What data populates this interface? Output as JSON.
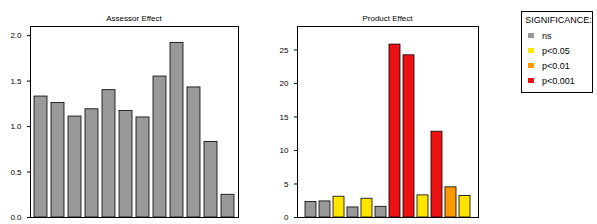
{
  "chart_data": [
    {
      "type": "bar",
      "title": "Assessor Effect",
      "categories": [
        null,
        null,
        null,
        null,
        null,
        null,
        null,
        null,
        null,
        null,
        null,
        null
      ],
      "values": [
        1.33,
        1.26,
        1.11,
        1.19,
        1.4,
        1.17,
        1.1,
        1.55,
        1.92,
        1.43,
        0.83,
        0.25
      ],
      "color": "#999999",
      "ylim": [
        0,
        2.1
      ],
      "yticks": [
        {
          "value": 0,
          "label": "0.0"
        },
        {
          "value": 0.5,
          "label": "0.5"
        },
        {
          "value": 1,
          "label": "1.0"
        },
        {
          "value": 1.5,
          "label": "1.5"
        },
        {
          "value": 2,
          "label": "2.0"
        }
      ],
      "tick_labels": "y"
    },
    {
      "type": "bar",
      "title": "Product Effect",
      "categories": [
        null,
        null,
        null,
        null,
        null,
        null,
        null,
        null,
        null,
        null,
        null,
        null
      ],
      "values": [
        2.3,
        2.4,
        3.1,
        1.5,
        2.8,
        1.6,
        25.8,
        24.2,
        3.3,
        12.8,
        4.5,
        3.2
      ],
      "colors": [
        "#999999",
        "#999999",
        "#ffe400",
        "#999999",
        "#ffe400",
        "#999999",
        "#ee1111",
        "#ee1111",
        "#ffe400",
        "#ee1111",
        "#ff9900",
        "#ffe400"
      ],
      "ylim": [
        0,
        28.5
      ],
      "yticks": [
        0,
        5,
        10,
        15,
        20,
        25
      ],
      "tick_labels": "y"
    }
  ],
  "legend_box": {
    "title": "SIGNIFICANCE:",
    "entries": [
      {
        "name": "ns",
        "color": "#999999"
      },
      {
        "name": "p<0.05",
        "color": "#ffe400"
      },
      {
        "name": "p<0.01",
        "color": "#ff9900"
      },
      {
        "name": "p<0.001",
        "color": "#ee1111"
      }
    ]
  }
}
